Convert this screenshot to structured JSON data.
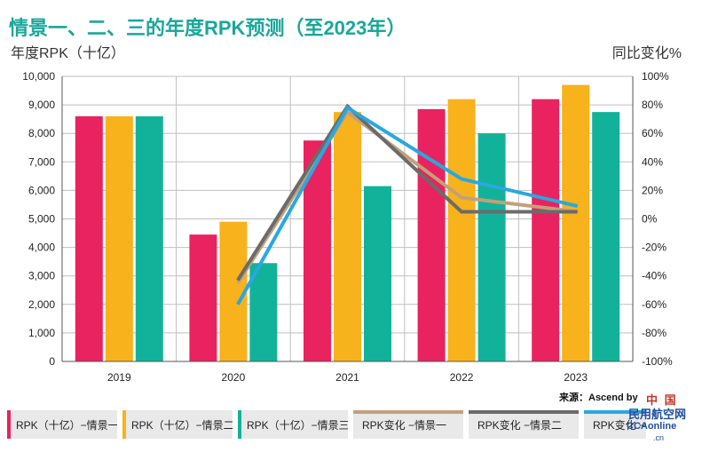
{
  "title": "情景一、二、三的年度RPK预测（至2023年）",
  "source": "来源：Ascend by Cirium",
  "watermark": {
    "line1": "中 国",
    "line2": "民用航空网",
    "line3": "CCAonline",
    "line4": ".cn"
  },
  "colors": {
    "s1": "#e8235f",
    "s2": "#f7b21c",
    "s3": "#12b29a",
    "l1": "#c3a07a",
    "l2": "#6b6b6b",
    "l3": "#29a8e0",
    "grid": "#bfbfbf"
  },
  "chart_data": {
    "type": "bar",
    "ylabel": "年度RPK（十亿）",
    "y2label": "同比变化%",
    "categories": [
      "2019",
      "2020",
      "2021",
      "2022",
      "2023"
    ],
    "ylim": [
      0,
      10000
    ],
    "y_ticks": [
      "0",
      "1,000",
      "2,000",
      "3,000",
      "4,000",
      "5,000",
      "6,000",
      "7,000",
      "8,000",
      "9,000",
      "10,000"
    ],
    "y2lim": [
      -100,
      100
    ],
    "y2_ticks": [
      "-100%",
      "-80%",
      "-60%",
      "-40%",
      "-20%",
      "0%",
      "20%",
      "40%",
      "60%",
      "80%",
      "100%"
    ],
    "grid": true,
    "series": [
      {
        "name": "RPK（十亿）−情景一",
        "kind": "bar",
        "color_key": "s1",
        "values": [
          8600,
          4450,
          7750,
          8850,
          9200
        ]
      },
      {
        "name": "RPK（十亿）−情景二",
        "kind": "bar",
        "color_key": "s2",
        "values": [
          8600,
          4900,
          8750,
          9200,
          9700
        ]
      },
      {
        "name": "RPK（十亿）−情景三",
        "kind": "bar",
        "color_key": "s3",
        "values": [
          8600,
          3450,
          6150,
          8000,
          8750
        ]
      },
      {
        "name": "RPK变化 −情景一",
        "kind": "line",
        "axis": "right",
        "color_key": "l1",
        "values": [
          null,
          -45,
          75,
          15,
          5
        ]
      },
      {
        "name": "RPK变化 −情景二",
        "kind": "line",
        "axis": "right",
        "color_key": "l2",
        "values": [
          null,
          -43,
          79,
          5,
          5
        ]
      },
      {
        "name": "RPK变化 −情景三",
        "kind": "line",
        "axis": "right",
        "color_key": "l3",
        "values": [
          null,
          -60,
          78,
          28,
          9
        ]
      }
    ]
  }
}
